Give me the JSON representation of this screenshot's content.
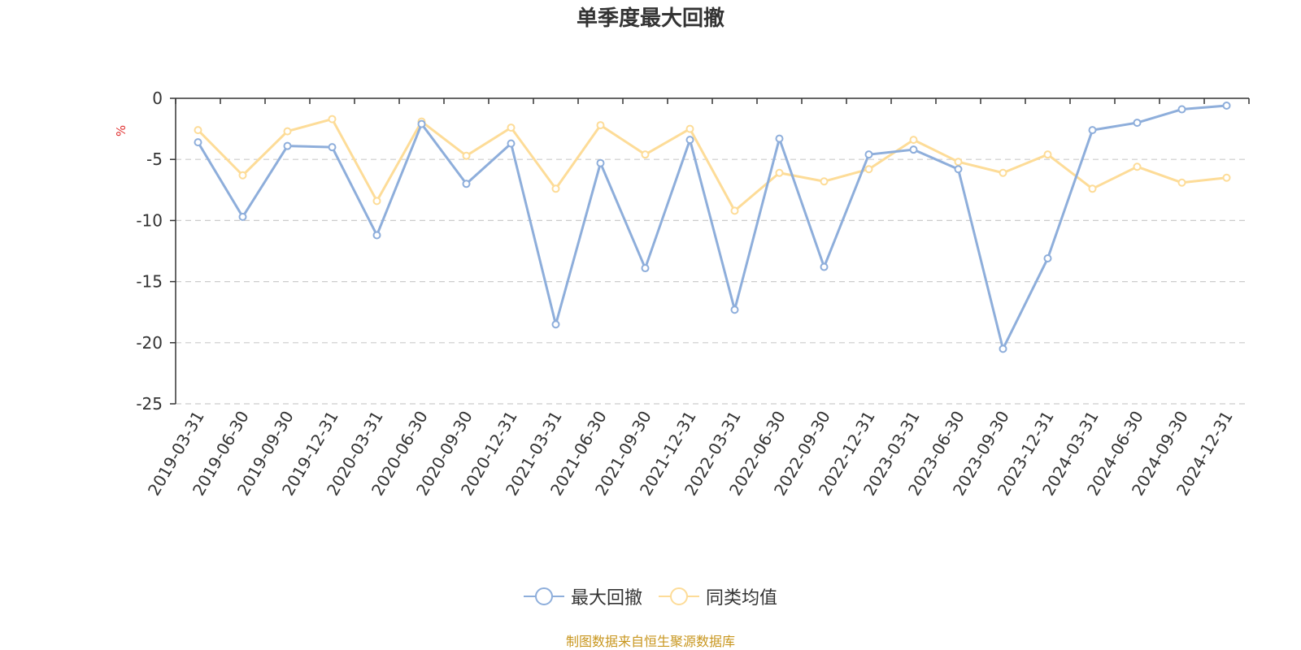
{
  "chart_data": {
    "type": "line",
    "title": "单季度最大回撤",
    "ylabel": "%",
    "ylim": [
      -25,
      0
    ],
    "yticks": [
      0,
      -5,
      -10,
      -15,
      -20,
      -25
    ],
    "grid": true,
    "legend_position": "bottom-center",
    "categories": [
      "2019-03-31",
      "2019-06-30",
      "2019-09-30",
      "2019-12-31",
      "2020-03-31",
      "2020-06-30",
      "2020-09-30",
      "2020-12-31",
      "2021-03-31",
      "2021-06-30",
      "2021-09-30",
      "2021-12-31",
      "2022-03-31",
      "2022-06-30",
      "2022-09-30",
      "2022-12-31",
      "2023-03-31",
      "2023-06-30",
      "2023-09-30",
      "2023-12-31",
      "2024-03-31",
      "2024-06-30",
      "2024-09-30",
      "2024-12-31"
    ],
    "series": [
      {
        "name": "最大回撤",
        "color": "#8eaedb",
        "values": [
          -3.6,
          -9.7,
          -3.9,
          -4.0,
          -11.2,
          -2.1,
          -7.0,
          -3.7,
          -18.5,
          -5.3,
          -13.9,
          -3.4,
          -17.3,
          -3.3,
          -13.8,
          -4.6,
          -4.2,
          -5.8,
          -20.5,
          -13.1,
          -2.6,
          -2.0,
          -0.9,
          -0.6
        ]
      },
      {
        "name": "同类均值",
        "color": "#fddc98",
        "values": [
          -2.6,
          -6.3,
          -2.7,
          -1.7,
          -8.4,
          -1.9,
          -4.7,
          -2.4,
          -7.4,
          -2.2,
          -4.6,
          -2.5,
          -9.2,
          -6.1,
          -6.8,
          -5.8,
          -3.4,
          -5.2,
          -6.1,
          -4.6,
          -7.4,
          -5.6,
          -6.9,
          -6.5
        ]
      }
    ],
    "source": "制图数据来自恒生聚源数据库"
  }
}
